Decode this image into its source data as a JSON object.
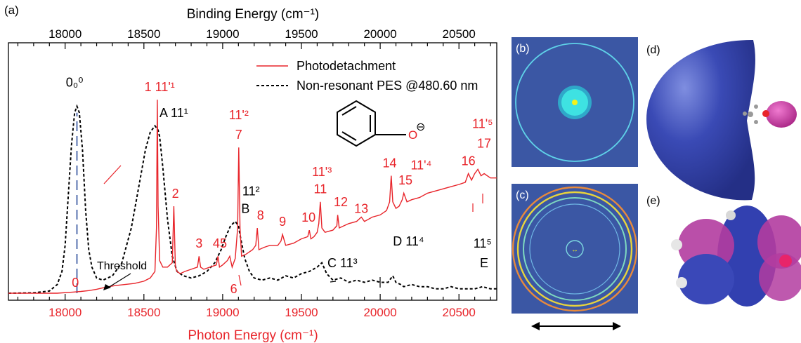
{
  "panel_labels": {
    "a": "(a)",
    "b": "(b)",
    "c": "(c)",
    "d": "(d)",
    "e": "(e)"
  },
  "colors": {
    "photodetachment": "#e8242a",
    "pes": "#000000",
    "dashed_marker": "#2b4c9a",
    "image_bg": "#3b57a4",
    "orbital_blue": "#3347b0",
    "orbital_pink": "#c23a9e"
  },
  "chart_data": {
    "type": "line",
    "top_axis": {
      "label": "Binding Energy (cm⁻¹)",
      "ticks": [
        18000,
        18500,
        19000,
        19500,
        20000,
        20500
      ],
      "range": [
        17640,
        20740
      ]
    },
    "bottom_axis": {
      "label": "Photon Energy (cm⁻¹)",
      "ticks": [
        18000,
        18500,
        19000,
        19500,
        20000,
        20500
      ],
      "range": [
        17640,
        20740
      ]
    },
    "ylim": [
      0,
      1
    ],
    "legend": {
      "placement": "top-right",
      "entries": [
        "Photodetachment",
        "Non-resonant PES @480.60 nm"
      ]
    },
    "threshold_label": "Threshold",
    "threshold_x": 18170,
    "marker_line_x": 18075,
    "series": [
      {
        "name": "Photodetachment",
        "x": [
          17640,
          17800,
          17950,
          18050,
          18100,
          18150,
          18200,
          18260,
          18320,
          18380,
          18440,
          18500,
          18540,
          18570,
          18580,
          18585,
          18590,
          18600,
          18620,
          18650,
          18680,
          18690,
          18700,
          18710,
          18730,
          18760,
          18800,
          18840,
          18850,
          18860,
          18880,
          18920,
          18960,
          18970,
          18980,
          19000,
          19030,
          19045,
          19060,
          19080,
          19095,
          19102,
          19110,
          19120,
          19150,
          19190,
          19210,
          19220,
          19230,
          19260,
          19300,
          19350,
          19370,
          19380,
          19400,
          19450,
          19500,
          19540,
          19550,
          19560,
          19580,
          19600,
          19610,
          19620,
          19630,
          19650,
          19700,
          19725,
          19730,
          19740,
          19770,
          19800,
          19850,
          19880,
          19900,
          19950,
          20000,
          20040,
          20060,
          20070,
          20080,
          20100,
          20120,
          20140,
          20150,
          20170,
          20200,
          20250,
          20300,
          20350,
          20400,
          20450,
          20500,
          20540,
          20560,
          20580,
          20600,
          20620,
          20640,
          20660,
          20700,
          20740
        ],
        "y": [
          0.0,
          0.0,
          0.0,
          0.005,
          0.008,
          0.012,
          0.018,
          0.028,
          0.035,
          0.04,
          0.045,
          0.055,
          0.07,
          0.1,
          0.3,
          0.89,
          0.4,
          0.15,
          0.12,
          0.12,
          0.14,
          0.4,
          0.12,
          0.1,
          0.09,
          0.1,
          0.11,
          0.12,
          0.17,
          0.12,
          0.11,
          0.12,
          0.13,
          0.17,
          0.12,
          0.13,
          0.15,
          0.17,
          0.12,
          0.16,
          0.3,
          0.67,
          0.3,
          0.17,
          0.18,
          0.2,
          0.22,
          0.3,
          0.2,
          0.21,
          0.22,
          0.22,
          0.24,
          0.27,
          0.22,
          0.23,
          0.25,
          0.26,
          0.29,
          0.25,
          0.26,
          0.28,
          0.32,
          0.42,
          0.3,
          0.28,
          0.29,
          0.31,
          0.36,
          0.3,
          0.31,
          0.32,
          0.33,
          0.35,
          0.33,
          0.35,
          0.36,
          0.38,
          0.42,
          0.54,
          0.42,
          0.39,
          0.4,
          0.43,
          0.46,
          0.42,
          0.43,
          0.44,
          0.46,
          0.47,
          0.48,
          0.49,
          0.5,
          0.51,
          0.55,
          0.52,
          0.55,
          0.57,
          0.54,
          0.55,
          0.53,
          0.53
        ]
      },
      {
        "name": "Non-resonant PES @480.60 nm",
        "x": [
          17640,
          17800,
          17900,
          17950,
          17980,
          18000,
          18020,
          18040,
          18060,
          18075,
          18090,
          18110,
          18130,
          18150,
          18170,
          18200,
          18240,
          18300,
          18360,
          18420,
          18470,
          18510,
          18540,
          18570,
          18590,
          18600,
          18620,
          18650,
          18680,
          18710,
          18750,
          18800,
          18850,
          18900,
          18950,
          18990,
          19020,
          19050,
          19080,
          19100,
          19115,
          19140,
          19170,
          19200,
          19250,
          19300,
          19350,
          19400,
          19450,
          19500,
          19550,
          19600,
          19630,
          19660,
          19700,
          19750,
          19800,
          19850,
          19900,
          19950,
          20000,
          20050,
          20080,
          20100,
          20130,
          20150,
          20200,
          20250,
          20300,
          20350,
          20400,
          20450,
          20500,
          20550,
          20600,
          20650,
          20700,
          20740
        ],
        "y": [
          0.0,
          0.002,
          0.01,
          0.04,
          0.1,
          0.22,
          0.45,
          0.68,
          0.83,
          0.86,
          0.83,
          0.66,
          0.38,
          0.2,
          0.12,
          0.07,
          0.06,
          0.08,
          0.14,
          0.3,
          0.5,
          0.66,
          0.74,
          0.77,
          0.75,
          0.72,
          0.58,
          0.34,
          0.17,
          0.1,
          0.08,
          0.07,
          0.08,
          0.1,
          0.14,
          0.2,
          0.26,
          0.31,
          0.33,
          0.31,
          0.25,
          0.16,
          0.1,
          0.07,
          0.06,
          0.07,
          0.06,
          0.08,
          0.07,
          0.09,
          0.1,
          0.12,
          0.14,
          0.09,
          0.06,
          0.07,
          0.05,
          0.06,
          0.05,
          0.06,
          0.05,
          0.05,
          0.08,
          0.05,
          0.04,
          0.03,
          0.04,
          0.03,
          0.03,
          0.02,
          0.02,
          0.03,
          0.02,
          0.02,
          0.02,
          0.03,
          0.02,
          0.02
        ]
      }
    ],
    "red_labels": [
      {
        "text": "0",
        "x": 18065,
        "y": 0.01
      },
      {
        "text": "1 11ʹ¹",
        "x": 18600,
        "y": 0.91
      },
      {
        "text": "2",
        "x": 18700,
        "y": 0.42
      },
      {
        "text": "3",
        "x": 18850,
        "y": 0.19
      },
      {
        "text": "4",
        "x": 18960,
        "y": 0.19
      },
      {
        "text": "5",
        "x": 19005,
        "y": 0.19
      },
      {
        "text": "6",
        "x": 19070,
        "y": -0.02
      },
      {
        "text": "7",
        "x": 19102,
        "y": 0.69
      },
      {
        "text": "11ʹ²",
        "x": 19102,
        "y": 0.78
      },
      {
        "text": "8",
        "x": 19240,
        "y": 0.32
      },
      {
        "text": "9",
        "x": 19380,
        "y": 0.29
      },
      {
        "text": "10",
        "x": 19545,
        "y": 0.31
      },
      {
        "text": "11",
        "x": 19620,
        "y": 0.44
      },
      {
        "text": "11ʹ³",
        "x": 19630,
        "y": 0.52
      },
      {
        "text": "12",
        "x": 19750,
        "y": 0.38
      },
      {
        "text": "13",
        "x": 19880,
        "y": 0.35
      },
      {
        "text": "14",
        "x": 20060,
        "y": 0.56
      },
      {
        "text": "15",
        "x": 20160,
        "y": 0.48
      },
      {
        "text": "11ʹ⁴",
        "x": 20260,
        "y": 0.55
      },
      {
        "text": "16",
        "x": 20560,
        "y": 0.57
      },
      {
        "text": "17",
        "x": 20660,
        "y": 0.65
      },
      {
        "text": "11ʹ⁵",
        "x": 20650,
        "y": 0.74
      }
    ],
    "black_labels": [
      {
        "text": "0₀⁰",
        "x": 18060,
        "y": 0.93
      },
      {
        "text": "A 11¹",
        "x": 18690,
        "y": 0.79
      },
      {
        "text": "11²",
        "x": 19180,
        "y": 0.43
      },
      {
        "text": "B",
        "x": 19145,
        "y": 0.35
      },
      {
        "text": "C 11³",
        "x": 19760,
        "y": 0.1
      },
      {
        "text": "D 11⁴",
        "x": 20180,
        "y": 0.2
      },
      {
        "text": "11⁵",
        "x": 20650,
        "y": 0.19
      },
      {
        "text": "E",
        "x": 20660,
        "y": 0.1
      }
    ]
  },
  "molecule": {
    "charge": "⊖",
    "atom": "O"
  },
  "polarization_arrow": "↔"
}
